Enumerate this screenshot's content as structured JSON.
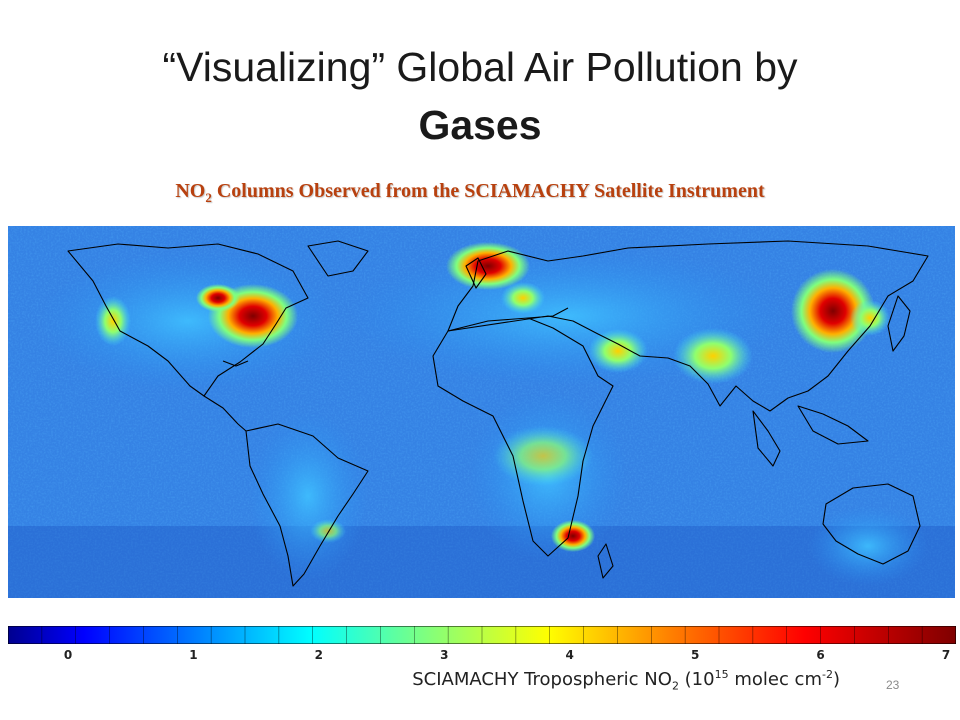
{
  "slide": {
    "title_part1": "“Visualizing” Global Air Pollution by",
    "title_part2": "Gases",
    "subtitle_pre": "NO",
    "subtitle_sub": "2",
    "subtitle_post": " Columns Observed from the SCIAMACHY Satellite Instrument",
    "page_number": "23"
  },
  "colorbar": {
    "ticks": [
      "0",
      "1",
      "2",
      "3",
      "4",
      "5",
      "6",
      "7"
    ],
    "range": [
      0,
      7
    ],
    "label_pre": "SCIAMACHY Tropospheric NO",
    "label_sub": "2",
    "label_mid": " (10",
    "label_sup": "15",
    "label_post": " molec cm",
    "label_sup2": "-2",
    "label_end": ")",
    "colors": [
      "#00008f",
      "#0000ff",
      "#007fff",
      "#00ffff",
      "#7fff7f",
      "#ffff00",
      "#ff7f00",
      "#ff0000",
      "#7f0000"
    ]
  },
  "map": {
    "hotspots": [
      "eastern-united-states",
      "western-europe",
      "eastern-china",
      "south-africa",
      "middle-east",
      "japan",
      "india"
    ],
    "background_color": "#2a72d6",
    "coastline_color": "#000000"
  }
}
